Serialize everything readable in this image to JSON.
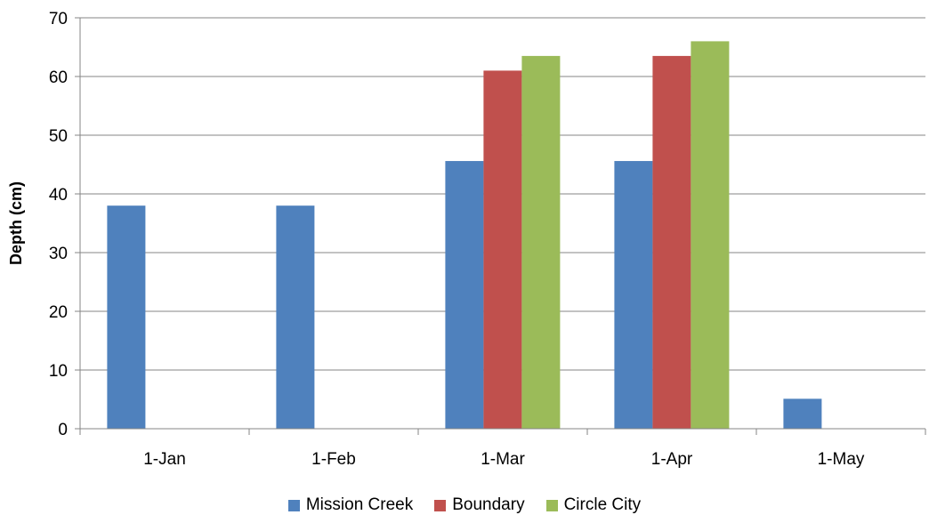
{
  "chart_data": {
    "type": "bar",
    "title": "",
    "xlabel": "",
    "ylabel": "Depth (cm)",
    "ylim": [
      0,
      70
    ],
    "yticks": [
      "0",
      "10",
      "20",
      "30",
      "40",
      "50",
      "60",
      "70"
    ],
    "grid": true,
    "legend_position": "bottom",
    "categories": [
      "1-Jan",
      "1-Feb",
      "1-Mar",
      "1-Apr",
      "1-May"
    ],
    "series": [
      {
        "name": "Mission Creek",
        "color": "#4F81BD",
        "values": [
          38,
          38,
          45.6,
          45.6,
          5.1
        ]
      },
      {
        "name": "Boundary",
        "color": "#C0504D",
        "values": [
          null,
          null,
          61,
          63.5,
          null
        ]
      },
      {
        "name": "Circle City",
        "color": "#9BBB59",
        "values": [
          null,
          null,
          63.5,
          66,
          null
        ]
      }
    ]
  }
}
